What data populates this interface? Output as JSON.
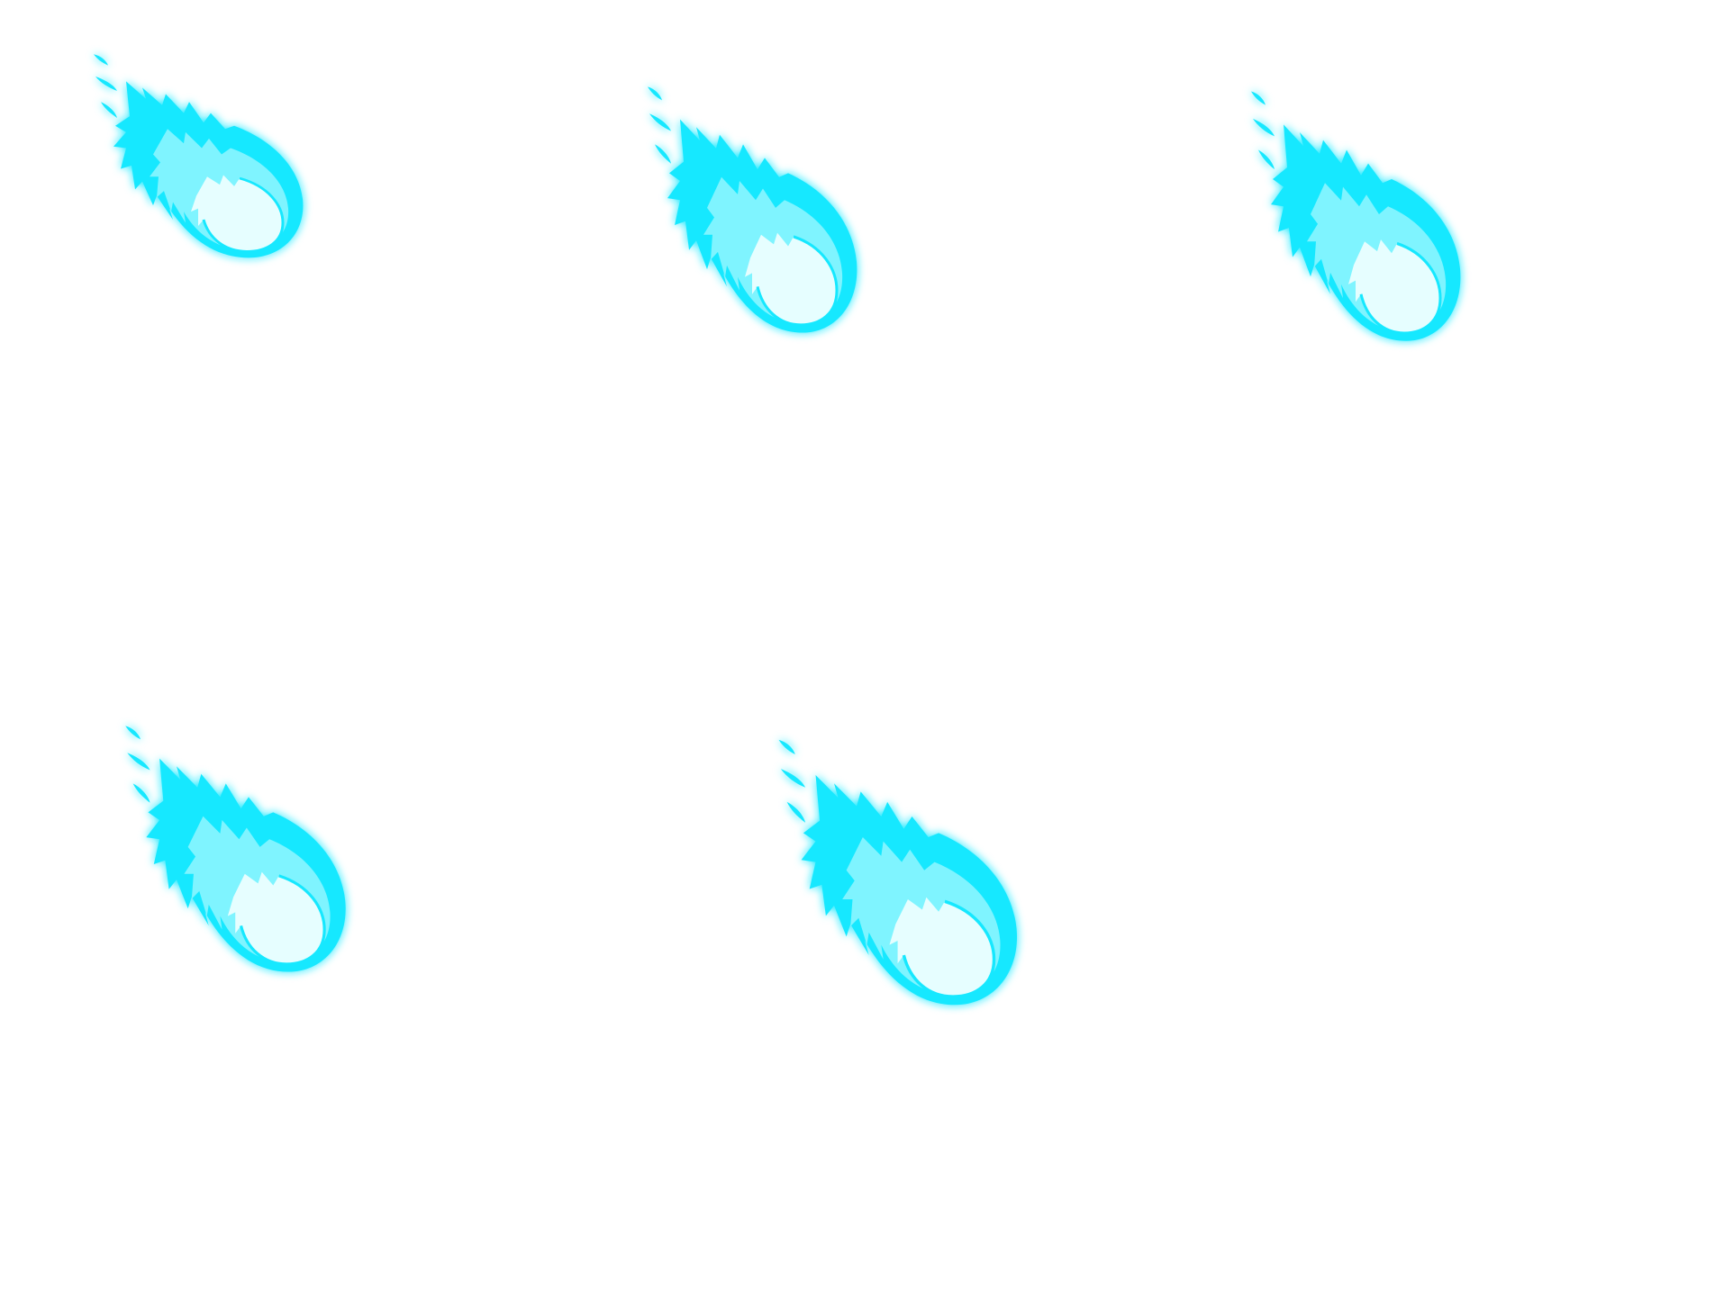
{
  "sheet": {
    "description_hidden": "",
    "frame_count": 5,
    "frames": [
      {
        "icon": "blue-fireball-icon",
        "id": 1
      },
      {
        "icon": "blue-fireball-icon",
        "id": 2
      },
      {
        "icon": "blue-fireball-icon",
        "id": 3
      },
      {
        "icon": "blue-fireball-icon",
        "id": 4
      },
      {
        "icon": "blue-fireball-icon",
        "id": 5
      }
    ],
    "colors": {
      "background": "#ffffff",
      "outer_flame": "#18e8ff",
      "mid_flame": "#7ff4ff",
      "core": "#e6feff",
      "glow": "#5ff0ff"
    }
  }
}
